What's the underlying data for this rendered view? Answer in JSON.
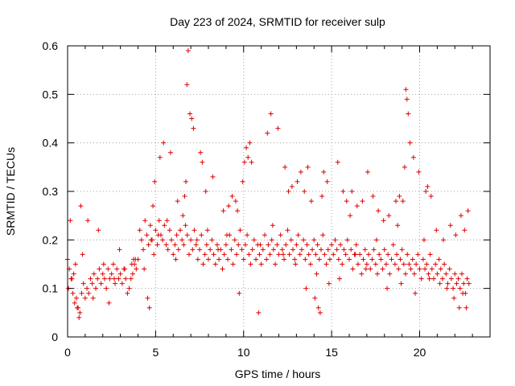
{
  "chart_data": {
    "type": "scatter",
    "title": "Day 223 of 2024, SRMTID for receiver sulp",
    "xlabel": "GPS time / hours",
    "ylabel": "SRMTID / TECUs",
    "xlim": [
      0,
      24
    ],
    "ylim": [
      0,
      0.6
    ],
    "xticks": [
      0,
      5,
      10,
      15,
      20
    ],
    "xtick_labels": [
      "0",
      "5",
      "10",
      "15",
      "20"
    ],
    "yticks": [
      0,
      0.1,
      0.2,
      0.3,
      0.4,
      0.5,
      0.6
    ],
    "ytick_labels": [
      "0",
      "0.1",
      "0.2",
      "0.3",
      "0.4",
      "0.5",
      "0.6"
    ],
    "grid": true,
    "marker": "+",
    "series": [
      {
        "name": "SRMTID",
        "color": "#e00000",
        "x": [
          0.0,
          0.1,
          0.2,
          0.3,
          0.4,
          0.5,
          0.6,
          0.7,
          0.8,
          0.9,
          1.0,
          1.1,
          1.2,
          1.3,
          1.4,
          1.5,
          1.6,
          1.7,
          1.8,
          1.9,
          2.0,
          2.1,
          2.2,
          2.3,
          2.4,
          2.5,
          2.6,
          2.7,
          2.8,
          2.9,
          3.0,
          3.1,
          3.2,
          3.3,
          3.4,
          3.5,
          3.6,
          3.7,
          3.8,
          3.9,
          4.0,
          4.1,
          4.2,
          4.3,
          4.4,
          4.5,
          4.6,
          4.7,
          4.8,
          4.9,
          5.0,
          5.1,
          5.2,
          5.3,
          5.4,
          5.5,
          5.6,
          5.7,
          5.8,
          5.9,
          6.0,
          6.1,
          6.2,
          6.3,
          6.4,
          6.5,
          6.6,
          6.7,
          6.8,
          6.9,
          7.0,
          7.1,
          7.2,
          7.3,
          7.4,
          7.5,
          7.6,
          7.7,
          7.8,
          7.9,
          8.0,
          8.1,
          8.2,
          8.3,
          8.4,
          8.5,
          8.6,
          8.7,
          8.8,
          8.9,
          9.0,
          9.1,
          9.2,
          9.3,
          9.4,
          9.5,
          9.6,
          9.7,
          9.8,
          9.9,
          10.0,
          10.1,
          10.2,
          10.3,
          10.4,
          10.5,
          10.6,
          10.7,
          10.8,
          10.9,
          11.0,
          11.1,
          11.2,
          11.3,
          11.4,
          11.5,
          11.6,
          11.7,
          11.8,
          11.9,
          12.0,
          12.1,
          12.2,
          12.3,
          12.4,
          12.5,
          12.6,
          12.7,
          12.8,
          12.9,
          13.0,
          13.1,
          13.2,
          13.3,
          13.4,
          13.5,
          13.6,
          13.7,
          13.8,
          13.9,
          14.0,
          14.1,
          14.2,
          14.3,
          14.4,
          14.5,
          14.6,
          14.7,
          14.8,
          14.9,
          15.0,
          15.1,
          15.2,
          15.3,
          15.4,
          15.5,
          15.6,
          15.7,
          15.8,
          15.9,
          16.0,
          16.1,
          16.2,
          16.3,
          16.4,
          16.5,
          16.6,
          16.7,
          16.8,
          16.9,
          17.0,
          17.1,
          17.2,
          17.3,
          17.4,
          17.5,
          17.6,
          17.7,
          17.8,
          17.9,
          18.0,
          18.1,
          18.2,
          18.3,
          18.4,
          18.5,
          18.6,
          18.7,
          18.8,
          18.9,
          19.0,
          19.1,
          19.2,
          19.3,
          19.4,
          19.5,
          19.6,
          19.7,
          19.8,
          19.9,
          20.0,
          20.1,
          20.2,
          20.3,
          20.4,
          20.5,
          20.6,
          20.7,
          20.8,
          20.9,
          21.0,
          21.1,
          21.2,
          21.3,
          21.4,
          21.5,
          21.6,
          21.7,
          21.8,
          21.9,
          22.0,
          22.1,
          22.2,
          22.3,
          22.4,
          22.5,
          22.6,
          22.7,
          22.8,
          0.05,
          0.25,
          0.45,
          0.55,
          0.65,
          0.75,
          1.15,
          1.75,
          2.35,
          2.95,
          3.65,
          3.75,
          4.35,
          4.55,
          4.65,
          4.75,
          4.85,
          4.95,
          5.25,
          5.45,
          5.85,
          6.25,
          6.55,
          6.65,
          6.72,
          6.78,
          6.85,
          6.95,
          7.05,
          7.15,
          7.55,
          7.65,
          7.85,
          8.25,
          8.85,
          9.15,
          9.35,
          9.55,
          9.75,
          9.95,
          10.05,
          10.15,
          10.25,
          10.35,
          10.45,
          10.85,
          11.35,
          11.55,
          11.95,
          12.35,
          12.55,
          12.75,
          13.05,
          13.25,
          13.45,
          13.65,
          13.85,
          14.05,
          14.25,
          14.35,
          14.45,
          14.55,
          14.75,
          15.35,
          15.65,
          15.85,
          16.05,
          16.15,
          16.45,
          16.75,
          17.05,
          17.35,
          17.65,
          17.95,
          18.25,
          18.65,
          18.75,
          18.85,
          19.05,
          19.15,
          19.22,
          19.28,
          19.35,
          19.45,
          19.65,
          19.95,
          20.25,
          20.35,
          20.45,
          20.65,
          20.95,
          21.35,
          21.75,
          22.05,
          22.35,
          22.55,
          22.65,
          22.75,
          0.15,
          0.35,
          0.85,
          1.45,
          2.05,
          2.65,
          3.25,
          3.85,
          5.15,
          5.65,
          6.15,
          7.35,
          7.95,
          8.55,
          9.05,
          9.65,
          10.95,
          11.65,
          12.25,
          12.95,
          13.55,
          14.15,
          14.85,
          15.45,
          16.35,
          16.95,
          17.55,
          18.15,
          18.95,
          19.75,
          20.55,
          21.15,
          21.55,
          21.95,
          22.25,
          22.45
        ],
        "y": [
          0.16,
          0.14,
          0.12,
          0.09,
          0.07,
          0.08,
          0.06,
          0.05,
          0.09,
          0.11,
          0.08,
          0.1,
          0.09,
          0.12,
          0.11,
          0.13,
          0.1,
          0.12,
          0.14,
          0.11,
          0.13,
          0.12,
          0.1,
          0.14,
          0.12,
          0.13,
          0.15,
          0.11,
          0.14,
          0.12,
          0.13,
          0.11,
          0.14,
          0.12,
          0.09,
          0.1,
          0.12,
          0.13,
          0.15,
          0.14,
          0.16,
          0.22,
          0.2,
          0.18,
          0.24,
          0.21,
          0.19,
          0.23,
          0.2,
          0.17,
          0.22,
          0.19,
          0.24,
          0.21,
          0.2,
          0.23,
          0.19,
          0.18,
          0.22,
          0.2,
          0.17,
          0.19,
          0.21,
          0.18,
          0.22,
          0.2,
          0.19,
          0.23,
          0.21,
          0.17,
          0.2,
          0.18,
          0.22,
          0.19,
          0.16,
          0.18,
          0.21,
          0.15,
          0.17,
          0.19,
          0.16,
          0.18,
          0.2,
          0.17,
          0.15,
          0.19,
          0.16,
          0.18,
          0.14,
          0.17,
          0.19,
          0.16,
          0.21,
          0.18,
          0.15,
          0.2,
          0.17,
          0.19,
          0.22,
          0.18,
          0.16,
          0.19,
          0.21,
          0.17,
          0.15,
          0.18,
          0.2,
          0.16,
          0.19,
          0.17,
          0.15,
          0.18,
          0.21,
          0.16,
          0.19,
          0.17,
          0.2,
          0.18,
          0.15,
          0.19,
          0.17,
          0.21,
          0.18,
          0.16,
          0.19,
          0.22,
          0.17,
          0.2,
          0.18,
          0.16,
          0.19,
          0.21,
          0.17,
          0.18,
          0.2,
          0.16,
          0.19,
          0.17,
          0.15,
          0.18,
          0.2,
          0.17,
          0.19,
          0.16,
          0.18,
          0.21,
          0.17,
          0.15,
          0.18,
          0.16,
          0.19,
          0.17,
          0.2,
          0.18,
          0.16,
          0.19,
          0.15,
          0.18,
          0.17,
          0.2,
          0.16,
          0.18,
          0.14,
          0.17,
          0.19,
          0.15,
          0.17,
          0.13,
          0.16,
          0.18,
          0.15,
          0.17,
          0.14,
          0.16,
          0.18,
          0.15,
          0.13,
          0.17,
          0.16,
          0.14,
          0.18,
          0.15,
          0.17,
          0.13,
          0.16,
          0.19,
          0.15,
          0.17,
          0.14,
          0.16,
          0.18,
          0.15,
          0.13,
          0.17,
          0.15,
          0.14,
          0.16,
          0.13,
          0.15,
          0.17,
          0.14,
          0.12,
          0.16,
          0.14,
          0.15,
          0.13,
          0.17,
          0.14,
          0.12,
          0.15,
          0.13,
          0.16,
          0.14,
          0.12,
          0.15,
          0.13,
          0.11,
          0.14,
          0.12,
          0.1,
          0.13,
          0.11,
          0.12,
          0.1,
          0.13,
          0.11,
          0.09,
          0.12,
          0.11,
          0.1,
          0.12,
          0.15,
          0.06,
          0.04,
          0.27,
          0.24,
          0.22,
          0.07,
          0.18,
          0.15,
          0.16,
          0.14,
          0.08,
          0.06,
          0.2,
          0.27,
          0.32,
          0.37,
          0.4,
          0.38,
          0.28,
          0.25,
          0.29,
          0.32,
          0.52,
          0.59,
          0.46,
          0.45,
          0.43,
          0.38,
          0.36,
          0.3,
          0.33,
          0.26,
          0.27,
          0.29,
          0.28,
          0.09,
          0.32,
          0.36,
          0.39,
          0.37,
          0.4,
          0.36,
          0.05,
          0.42,
          0.46,
          0.43,
          0.35,
          0.3,
          0.31,
          0.32,
          0.34,
          0.3,
          0.35,
          0.28,
          0.08,
          0.06,
          0.05,
          0.29,
          0.34,
          0.32,
          0.36,
          0.3,
          0.28,
          0.25,
          0.3,
          0.27,
          0.28,
          0.34,
          0.29,
          0.26,
          0.24,
          0.25,
          0.28,
          0.23,
          0.29,
          0.28,
          0.35,
          0.51,
          0.49,
          0.46,
          0.4,
          0.37,
          0.34,
          0.2,
          0.3,
          0.31,
          0.29,
          0.22,
          0.2,
          0.23,
          0.21,
          0.25,
          0.22,
          0.06,
          0.26,
          0.24,
          0.13,
          0.17,
          0.08,
          0.15,
          0.12,
          0.14,
          0.16,
          0.21,
          0.24,
          0.16,
          0.2,
          0.22,
          0.18,
          0.21,
          0.26,
          0.19,
          0.23,
          0.17,
          0.15,
          0.1,
          0.13,
          0.11,
          0.12,
          0.17,
          0.14,
          0.2,
          0.1,
          0.11,
          0.09,
          0.12,
          0.11,
          0.1,
          0.08,
          0.06,
          0.09
        ]
      }
    ]
  }
}
